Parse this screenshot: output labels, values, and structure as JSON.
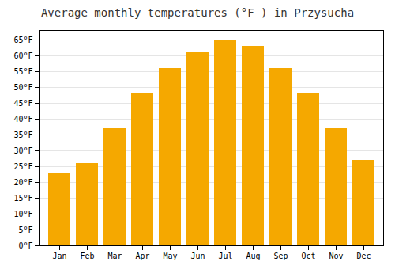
{
  "chart_data": {
    "type": "bar",
    "title": "Average monthly temperatures (°F ) in Przysucha",
    "categories": [
      "Jan",
      "Feb",
      "Mar",
      "Apr",
      "May",
      "Jun",
      "Jul",
      "Aug",
      "Sep",
      "Oct",
      "Nov",
      "Dec"
    ],
    "values": [
      23,
      26,
      37,
      48,
      56,
      61,
      65,
      63,
      56,
      48,
      37,
      27
    ],
    "color": "#F5A800",
    "ylim": [
      0,
      68
    ],
    "yticks": [
      {
        "value": 0,
        "label": "0°F"
      },
      {
        "value": 5,
        "label": "5°F"
      },
      {
        "value": 10,
        "label": "10°F"
      },
      {
        "value": 15,
        "label": "15°F"
      },
      {
        "value": 20,
        "label": "20°F"
      },
      {
        "value": 25,
        "label": "25°F"
      },
      {
        "value": 30,
        "label": "30°F"
      },
      {
        "value": 35,
        "label": "35°F"
      },
      {
        "value": 40,
        "label": "40°F"
      },
      {
        "value": 45,
        "label": "45°F"
      },
      {
        "value": 50,
        "label": "50°F"
      },
      {
        "value": 55,
        "label": "55°F"
      },
      {
        "value": 60,
        "label": "60°F"
      },
      {
        "value": 65,
        "label": "65°F"
      }
    ],
    "grid": true
  }
}
